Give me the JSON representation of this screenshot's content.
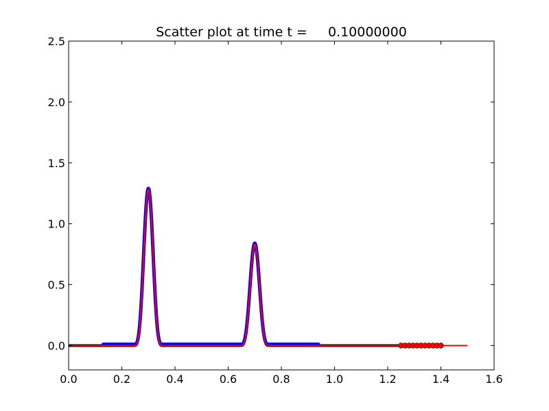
{
  "chart_data": {
    "type": "scatter",
    "title": "Scatter plot at time t =     0.10000000",
    "xlabel": "",
    "ylabel": "",
    "xlim": [
      0.0,
      1.6
    ],
    "ylim": [
      -0.2,
      2.5
    ],
    "xticks": [
      "0.0",
      "0.2",
      "0.4",
      "0.6",
      "0.8",
      "1.0",
      "1.2",
      "1.4",
      "1.6"
    ],
    "yticks": [
      "0.0",
      "0.5",
      "1.0",
      "1.5",
      "2.0",
      "2.5"
    ],
    "grid": false,
    "legend": "none",
    "series": [
      {
        "kind": "scatter-dense",
        "color": "#000000",
        "x_range": [
          0.0,
          1.26
        ],
        "profile": {
          "baseline": 0.0,
          "peaks": [
            {
              "center": 0.3,
              "height": 1.28
            },
            {
              "center": 0.7,
              "height": 0.83
            }
          ]
        }
      },
      {
        "kind": "scatter-dense",
        "color": "#0000ff",
        "x_range": [
          0.13,
          0.94
        ],
        "profile": {
          "baseline": 0.01,
          "peaks": [
            {
              "center": 0.3,
              "height": 1.28
            },
            {
              "center": 0.7,
              "height": 0.83
            }
          ]
        }
      },
      {
        "kind": "line",
        "color": "#ff0000",
        "x_range": [
          0.0,
          1.5
        ],
        "profile": {
          "baseline": 0.0,
          "peaks": [
            {
              "center": 0.3,
              "height": 1.28
            },
            {
              "center": 0.7,
              "height": 0.83
            }
          ]
        }
      },
      {
        "kind": "markers",
        "color": "#ff0000",
        "x": [
          1.25,
          1.265,
          1.28,
          1.295,
          1.31,
          1.325,
          1.34,
          1.355,
          1.37,
          1.385,
          1.4
        ],
        "y": [
          0,
          0,
          0,
          0,
          0,
          0,
          0,
          0,
          0,
          0,
          0
        ]
      }
    ]
  }
}
